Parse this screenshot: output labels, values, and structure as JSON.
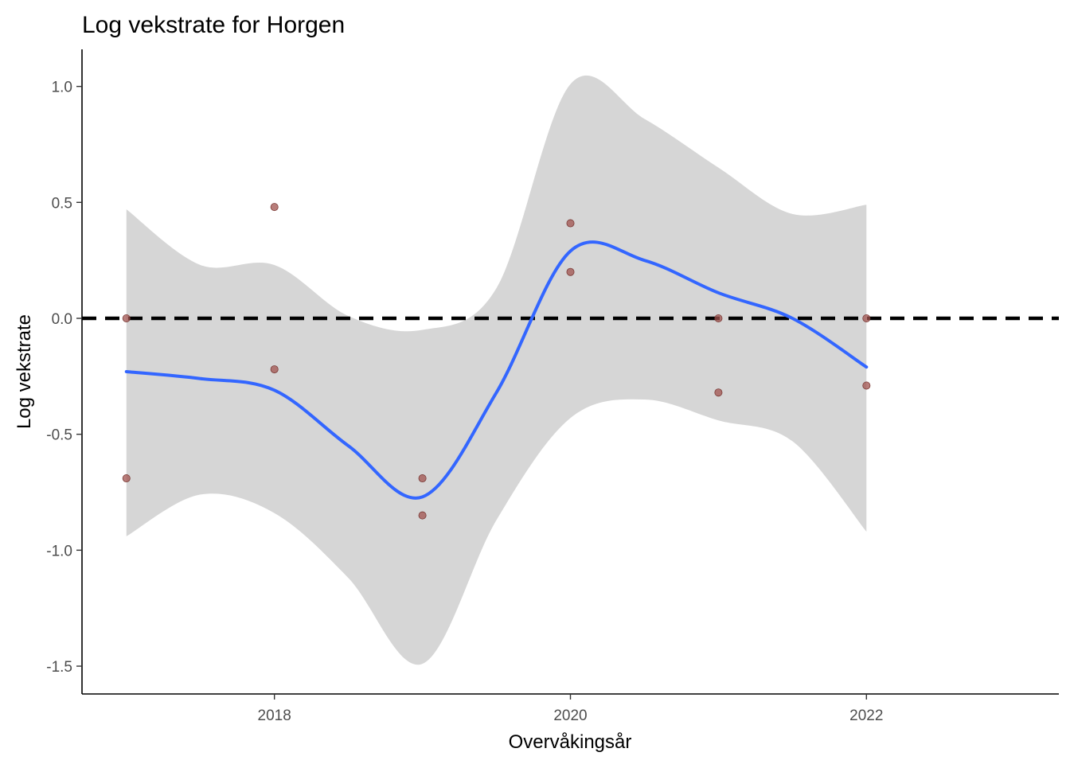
{
  "chart_data": {
    "type": "scatter",
    "title": "Log vekstrate for Horgen",
    "xlabel": "Overvåkingsår",
    "ylabel": "Log vekstrate",
    "xlim": [
      2016.7,
      2023.3
    ],
    "ylim": [
      -1.62,
      1.16
    ],
    "x_ticks": [
      2018,
      2020,
      2022
    ],
    "x_tick_labels": [
      "2018",
      "2020",
      "2022"
    ],
    "y_ticks": [
      1.0,
      0.5,
      0.0,
      -0.5,
      -1.0,
      -1.5
    ],
    "y_tick_labels": [
      "1.0",
      "0.5",
      "0.0",
      "-0.5",
      "-1.0",
      "-1.5"
    ],
    "grid": false,
    "reference_line": {
      "y": 0,
      "style": "dashed",
      "color": "#000000"
    },
    "points": {
      "color": "#a0524d",
      "x": [
        2017,
        2017,
        2018,
        2018,
        2019,
        2019,
        2020,
        2020,
        2021,
        2021,
        2022,
        2022
      ],
      "y": [
        0.0,
        -0.69,
        0.48,
        -0.22,
        -0.69,
        -0.85,
        0.41,
        0.2,
        0.0,
        -0.32,
        0.0,
        -0.29
      ]
    },
    "smooth": {
      "color": "#3366ff",
      "band_color": "#d6d6d6",
      "x": [
        2017,
        2017.5,
        2018,
        2018.5,
        2019,
        2019.5,
        2020,
        2020.5,
        2021,
        2021.5,
        2022
      ],
      "y": [
        -0.23,
        -0.26,
        -0.31,
        -0.55,
        -0.77,
        -0.32,
        0.29,
        0.25,
        0.11,
        0.0,
        -0.21
      ],
      "lower": [
        -0.94,
        -0.76,
        -0.84,
        -1.12,
        -1.49,
        -0.87,
        -0.43,
        -0.35,
        -0.44,
        -0.53,
        -0.92
      ],
      "upper": [
        0.47,
        0.23,
        0.23,
        0.01,
        -0.05,
        0.13,
        1.01,
        0.86,
        0.65,
        0.45,
        0.49
      ]
    }
  }
}
